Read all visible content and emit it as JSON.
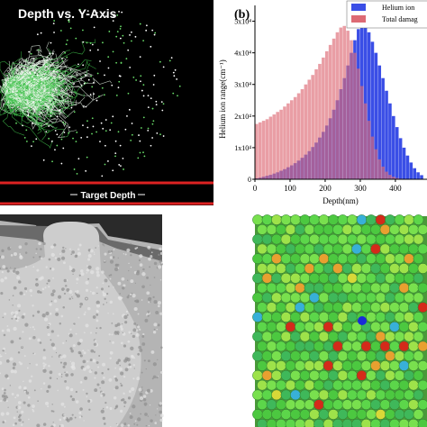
{
  "panel_a": {
    "title": "Depth vs. Y-Axis",
    "x_label": "Target Depth"
  },
  "chart_data": {
    "type": "histogram",
    "panel_label": "(b)",
    "x_label": "Depth(nm)",
    "y_label": "Helium ion range(cm⁻¹)",
    "bins": [
      0,
      10,
      20,
      30,
      40,
      50,
      60,
      70,
      80,
      90,
      100,
      110,
      120,
      130,
      140,
      150,
      160,
      170,
      180,
      190,
      200,
      210,
      220,
      230,
      240,
      250,
      260,
      270,
      280,
      290,
      300,
      310,
      320,
      330,
      340,
      350,
      360,
      370,
      380,
      390,
      400,
      410,
      420,
      430,
      440,
      450,
      460,
      470,
      480
    ],
    "series": [
      {
        "name": "Helium ion",
        "color": "#3a4ee6",
        "values": [
          300,
          500,
          800,
          1100,
          1400,
          1800,
          2200,
          2700,
          3200,
          3800,
          4400,
          5100,
          5900,
          6800,
          7800,
          8900,
          10200,
          11600,
          13200,
          15000,
          17000,
          19300,
          22000,
          25000,
          28500,
          32000,
          36000,
          40000,
          44000,
          47500,
          49000,
          48500,
          46500,
          43500,
          40000,
          36000,
          32000,
          28000,
          24000,
          20000,
          16500,
          13000,
          10000,
          7500,
          5300,
          3500,
          2200,
          1300
        ]
      },
      {
        "name": "Total damag",
        "color": "#dd6a74",
        "values": [
          17500,
          18000,
          18500,
          19000,
          19800,
          20500,
          21300,
          22000,
          23000,
          24000,
          25000,
          26000,
          27200,
          28500,
          30000,
          31500,
          33000,
          34800,
          36500,
          38500,
          40500,
          42500,
          44500,
          46500,
          48000,
          48500,
          47000,
          44000,
          40000,
          35000,
          29500,
          24000,
          18500,
          13500,
          9500,
          6300,
          4000,
          2400,
          1400,
          800,
          400,
          200,
          100,
          50,
          0,
          0,
          0,
          0
        ]
      }
    ],
    "xlim": [
      0,
      490
    ],
    "ylim": [
      0,
      55000
    ],
    "xticks": [
      0,
      100,
      200,
      300,
      400
    ],
    "yticks": [
      0,
      {
        "value": 10000,
        "label": "1x10⁴"
      },
      {
        "value": 20000,
        "label": "2x10⁴"
      },
      {
        "value": 30000,
        "label": "3x10⁴"
      },
      {
        "value": 40000,
        "label": "4x10⁴"
      },
      {
        "value": 50000,
        "label": "5x10⁴"
      }
    ]
  }
}
